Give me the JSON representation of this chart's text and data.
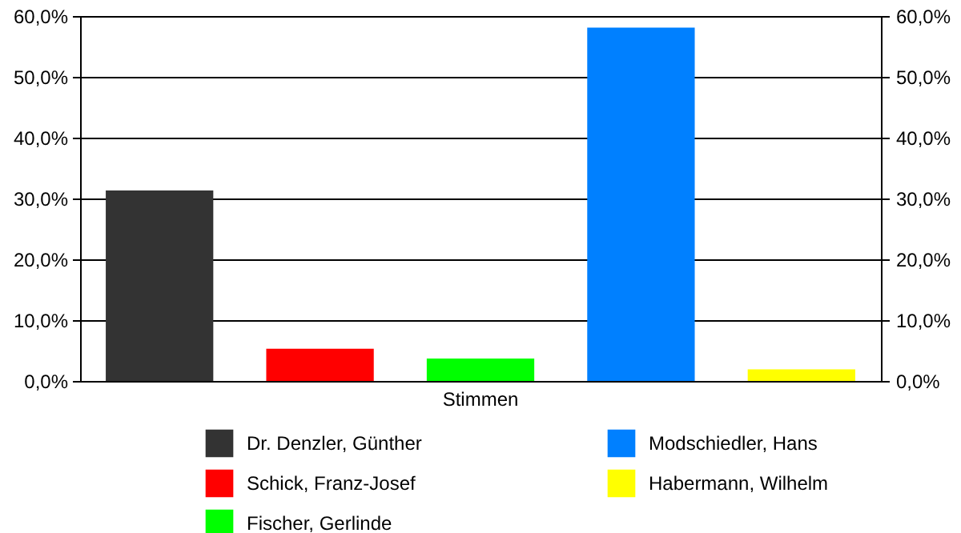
{
  "chart_data": {
    "type": "bar",
    "categories": [
      "Stimmen"
    ],
    "series": [
      {
        "name": "Dr. Denzler, Günther",
        "color": "#333333",
        "values": [
          31.3
        ]
      },
      {
        "name": "Schick, Franz-Josef",
        "color": "#ff0000",
        "values": [
          5.3
        ]
      },
      {
        "name": "Fischer, Gerlinde",
        "color": "#00ff00",
        "values": [
          3.7
        ]
      },
      {
        "name": "Modschiedler, Hans",
        "color": "#0080ff",
        "values": [
          58.1
        ]
      },
      {
        "name": "Habermann, Wilhelm",
        "color": "#ffff00",
        "values": [
          1.9
        ]
      }
    ],
    "ylim": [
      0,
      60
    ],
    "yticks": [
      {
        "value": 0,
        "label": "0,0%"
      },
      {
        "value": 10,
        "label": "10,0%"
      },
      {
        "value": 20,
        "label": "20,0%"
      },
      {
        "value": 30,
        "label": "30,0%"
      },
      {
        "value": 40,
        "label": "40,0%"
      },
      {
        "value": 50,
        "label": "50,0%"
      },
      {
        "value": 60,
        "label": "60,0%"
      }
    ],
    "grid": "y",
    "legend": "bottom"
  }
}
